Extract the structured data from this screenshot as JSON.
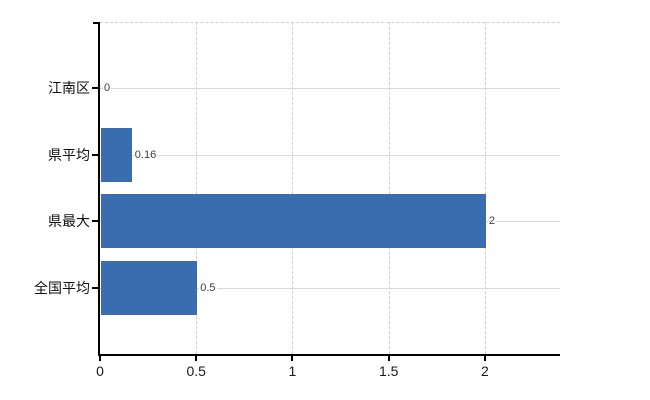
{
  "chart_data": {
    "type": "bar",
    "orientation": "horizontal",
    "title": "",
    "xlabel": "",
    "ylabel": "",
    "categories": [
      "江南区",
      "県平均",
      "県最大",
      "全国平均"
    ],
    "values": [
      0,
      0.16,
      2,
      0.5
    ],
    "value_labels": [
      "0",
      "0.16",
      "2",
      "0.5"
    ],
    "xlim": [
      0,
      2.39
    ],
    "xticks": [
      0,
      0.5,
      1,
      1.5,
      2
    ],
    "xtick_labels": [
      "0",
      "0.5",
      "1",
      "1.5",
      "2"
    ],
    "grid": true,
    "legend": false,
    "colors": {
      "bar": "#3a6cb0",
      "grid_solid": "#d9d9d9",
      "grid_dashed": "#cfcfcf",
      "axis": "#000000",
      "category_label": "#111111",
      "value_label": "#3d3d3d",
      "tick_label": "#1a1a1a",
      "background": "#ffffff"
    }
  }
}
